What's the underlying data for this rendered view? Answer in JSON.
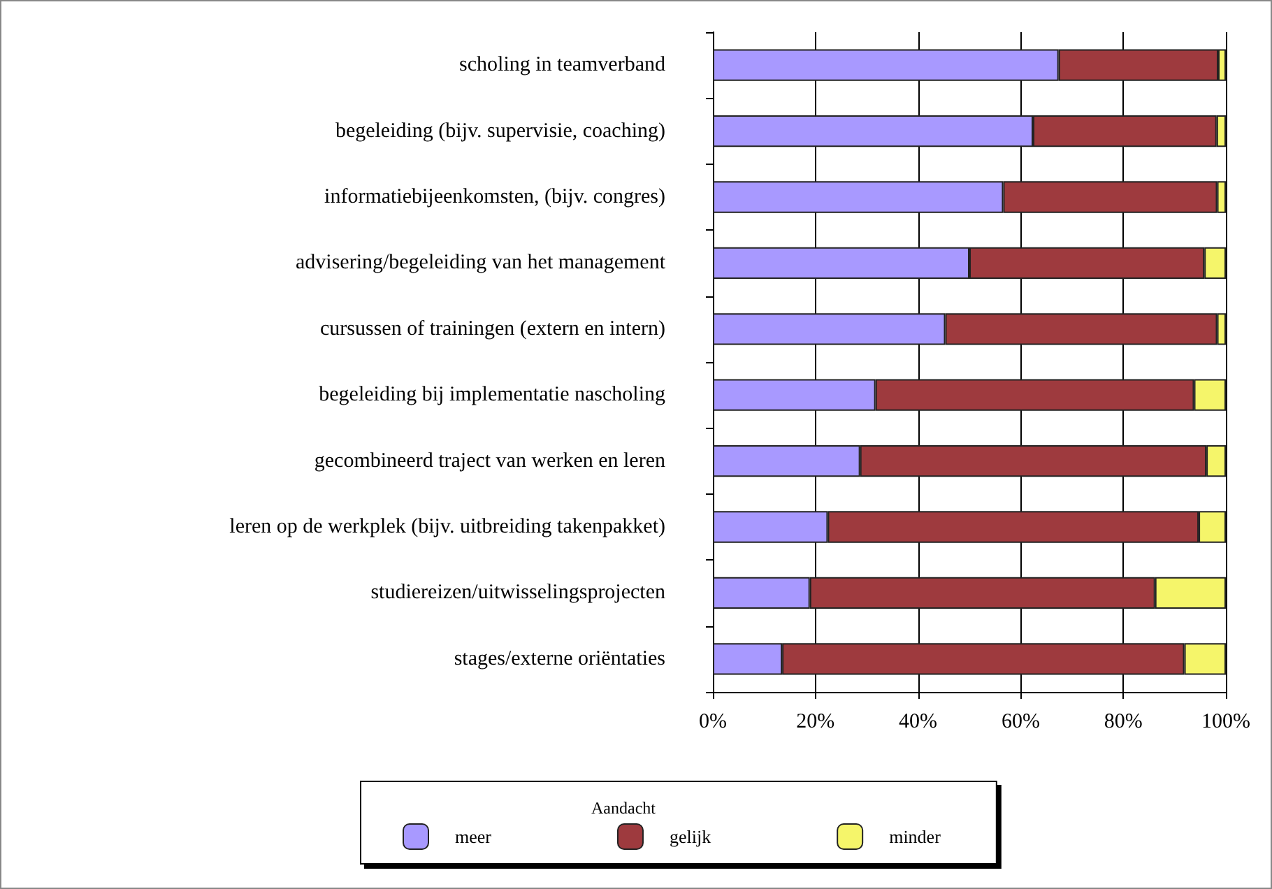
{
  "chart_data": {
    "type": "bar",
    "orientation": "horizontal",
    "stacked": true,
    "categories": [
      "scholing in teamverband",
      "begeleiding (bijv. supervisie, coaching)",
      "informatiebijeenkomsten, (bijv. congres)",
      "advisering/begeleiding van het management",
      "cursussen of trainingen (extern en intern)",
      "begeleiding bij implementatie nascholing",
      "gecombineerd traject van werken en leren",
      "leren op de werkplek (bijv. uitbreiding takenpakket)",
      "studiereizen/uitwisselingsprojecten",
      "stages/externe oriëntaties"
    ],
    "series": [
      {
        "name": "meer",
        "color": "#a899ff",
        "values": [
          67.4,
          62.4,
          56.6,
          50.0,
          45.3,
          31.7,
          28.7,
          22.4,
          18.9,
          13.5
        ]
      },
      {
        "name": "gelijk",
        "color": "#9e3a3e",
        "values": [
          31.1,
          35.8,
          41.7,
          45.8,
          53.0,
          62.1,
          67.5,
          72.3,
          67.3,
          78.4
        ]
      },
      {
        "name": "minder",
        "color": "#f5f56a",
        "values": [
          1.5,
          1.8,
          1.7,
          4.2,
          1.7,
          6.2,
          3.8,
          5.3,
          13.8,
          8.1
        ]
      }
    ],
    "xlim": [
      0,
      100
    ],
    "xticks": [
      {
        "value": 0,
        "label": "0%"
      },
      {
        "value": 20,
        "label": "20%"
      },
      {
        "value": 40,
        "label": "40%"
      },
      {
        "value": 60,
        "label": "60%"
      },
      {
        "value": 80,
        "label": "80%"
      },
      {
        "value": 100,
        "label": "100%"
      }
    ],
    "grid": "x",
    "legend": "bottom",
    "legend_title": "Aandacht"
  }
}
